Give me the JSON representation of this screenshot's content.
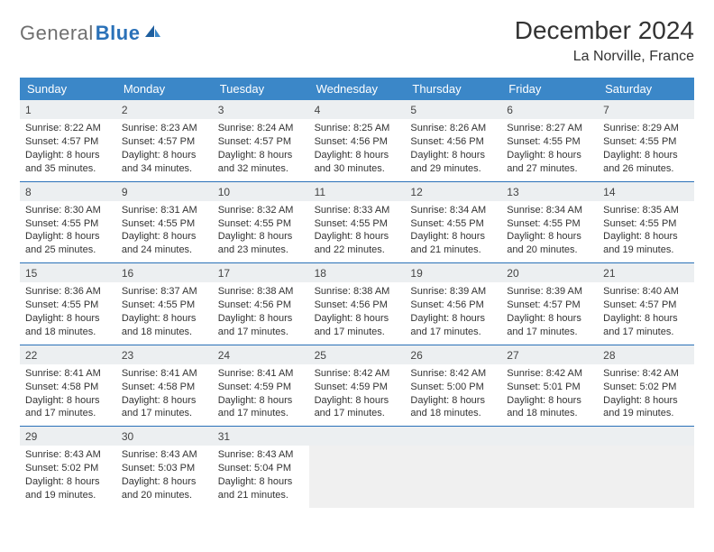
{
  "logo": {
    "text_gray": "General",
    "text_blue": "Blue"
  },
  "title": "December 2024",
  "location": "La Norville, France",
  "colors": {
    "header_bg": "#3b87c8",
    "header_text": "#ffffff",
    "row_divider": "#2a71b8",
    "daynum_bg": "#eceff1",
    "text": "#333333",
    "logo_gray": "#6f6f6f",
    "logo_blue": "#2a71b8",
    "empty_bg": "#f0f0f0"
  },
  "day_names": [
    "Sunday",
    "Monday",
    "Tuesday",
    "Wednesday",
    "Thursday",
    "Friday",
    "Saturday"
  ],
  "weeks": [
    [
      {
        "n": "1",
        "sr": "Sunrise: 8:22 AM",
        "ss": "Sunset: 4:57 PM",
        "d1": "Daylight: 8 hours",
        "d2": "and 35 minutes."
      },
      {
        "n": "2",
        "sr": "Sunrise: 8:23 AM",
        "ss": "Sunset: 4:57 PM",
        "d1": "Daylight: 8 hours",
        "d2": "and 34 minutes."
      },
      {
        "n": "3",
        "sr": "Sunrise: 8:24 AM",
        "ss": "Sunset: 4:57 PM",
        "d1": "Daylight: 8 hours",
        "d2": "and 32 minutes."
      },
      {
        "n": "4",
        "sr": "Sunrise: 8:25 AM",
        "ss": "Sunset: 4:56 PM",
        "d1": "Daylight: 8 hours",
        "d2": "and 30 minutes."
      },
      {
        "n": "5",
        "sr": "Sunrise: 8:26 AM",
        "ss": "Sunset: 4:56 PM",
        "d1": "Daylight: 8 hours",
        "d2": "and 29 minutes."
      },
      {
        "n": "6",
        "sr": "Sunrise: 8:27 AM",
        "ss": "Sunset: 4:55 PM",
        "d1": "Daylight: 8 hours",
        "d2": "and 27 minutes."
      },
      {
        "n": "7",
        "sr": "Sunrise: 8:29 AM",
        "ss": "Sunset: 4:55 PM",
        "d1": "Daylight: 8 hours",
        "d2": "and 26 minutes."
      }
    ],
    [
      {
        "n": "8",
        "sr": "Sunrise: 8:30 AM",
        "ss": "Sunset: 4:55 PM",
        "d1": "Daylight: 8 hours",
        "d2": "and 25 minutes."
      },
      {
        "n": "9",
        "sr": "Sunrise: 8:31 AM",
        "ss": "Sunset: 4:55 PM",
        "d1": "Daylight: 8 hours",
        "d2": "and 24 minutes."
      },
      {
        "n": "10",
        "sr": "Sunrise: 8:32 AM",
        "ss": "Sunset: 4:55 PM",
        "d1": "Daylight: 8 hours",
        "d2": "and 23 minutes."
      },
      {
        "n": "11",
        "sr": "Sunrise: 8:33 AM",
        "ss": "Sunset: 4:55 PM",
        "d1": "Daylight: 8 hours",
        "d2": "and 22 minutes."
      },
      {
        "n": "12",
        "sr": "Sunrise: 8:34 AM",
        "ss": "Sunset: 4:55 PM",
        "d1": "Daylight: 8 hours",
        "d2": "and 21 minutes."
      },
      {
        "n": "13",
        "sr": "Sunrise: 8:34 AM",
        "ss": "Sunset: 4:55 PM",
        "d1": "Daylight: 8 hours",
        "d2": "and 20 minutes."
      },
      {
        "n": "14",
        "sr": "Sunrise: 8:35 AM",
        "ss": "Sunset: 4:55 PM",
        "d1": "Daylight: 8 hours",
        "d2": "and 19 minutes."
      }
    ],
    [
      {
        "n": "15",
        "sr": "Sunrise: 8:36 AM",
        "ss": "Sunset: 4:55 PM",
        "d1": "Daylight: 8 hours",
        "d2": "and 18 minutes."
      },
      {
        "n": "16",
        "sr": "Sunrise: 8:37 AM",
        "ss": "Sunset: 4:55 PM",
        "d1": "Daylight: 8 hours",
        "d2": "and 18 minutes."
      },
      {
        "n": "17",
        "sr": "Sunrise: 8:38 AM",
        "ss": "Sunset: 4:56 PM",
        "d1": "Daylight: 8 hours",
        "d2": "and 17 minutes."
      },
      {
        "n": "18",
        "sr": "Sunrise: 8:38 AM",
        "ss": "Sunset: 4:56 PM",
        "d1": "Daylight: 8 hours",
        "d2": "and 17 minutes."
      },
      {
        "n": "19",
        "sr": "Sunrise: 8:39 AM",
        "ss": "Sunset: 4:56 PM",
        "d1": "Daylight: 8 hours",
        "d2": "and 17 minutes."
      },
      {
        "n": "20",
        "sr": "Sunrise: 8:39 AM",
        "ss": "Sunset: 4:57 PM",
        "d1": "Daylight: 8 hours",
        "d2": "and 17 minutes."
      },
      {
        "n": "21",
        "sr": "Sunrise: 8:40 AM",
        "ss": "Sunset: 4:57 PM",
        "d1": "Daylight: 8 hours",
        "d2": "and 17 minutes."
      }
    ],
    [
      {
        "n": "22",
        "sr": "Sunrise: 8:41 AM",
        "ss": "Sunset: 4:58 PM",
        "d1": "Daylight: 8 hours",
        "d2": "and 17 minutes."
      },
      {
        "n": "23",
        "sr": "Sunrise: 8:41 AM",
        "ss": "Sunset: 4:58 PM",
        "d1": "Daylight: 8 hours",
        "d2": "and 17 minutes."
      },
      {
        "n": "24",
        "sr": "Sunrise: 8:41 AM",
        "ss": "Sunset: 4:59 PM",
        "d1": "Daylight: 8 hours",
        "d2": "and 17 minutes."
      },
      {
        "n": "25",
        "sr": "Sunrise: 8:42 AM",
        "ss": "Sunset: 4:59 PM",
        "d1": "Daylight: 8 hours",
        "d2": "and 17 minutes."
      },
      {
        "n": "26",
        "sr": "Sunrise: 8:42 AM",
        "ss": "Sunset: 5:00 PM",
        "d1": "Daylight: 8 hours",
        "d2": "and 18 minutes."
      },
      {
        "n": "27",
        "sr": "Sunrise: 8:42 AM",
        "ss": "Sunset: 5:01 PM",
        "d1": "Daylight: 8 hours",
        "d2": "and 18 minutes."
      },
      {
        "n": "28",
        "sr": "Sunrise: 8:42 AM",
        "ss": "Sunset: 5:02 PM",
        "d1": "Daylight: 8 hours",
        "d2": "and 19 minutes."
      }
    ],
    [
      {
        "n": "29",
        "sr": "Sunrise: 8:43 AM",
        "ss": "Sunset: 5:02 PM",
        "d1": "Daylight: 8 hours",
        "d2": "and 19 minutes."
      },
      {
        "n": "30",
        "sr": "Sunrise: 8:43 AM",
        "ss": "Sunset: 5:03 PM",
        "d1": "Daylight: 8 hours",
        "d2": "and 20 minutes."
      },
      {
        "n": "31",
        "sr": "Sunrise: 8:43 AM",
        "ss": "Sunset: 5:04 PM",
        "d1": "Daylight: 8 hours",
        "d2": "and 21 minutes."
      },
      null,
      null,
      null,
      null
    ]
  ]
}
